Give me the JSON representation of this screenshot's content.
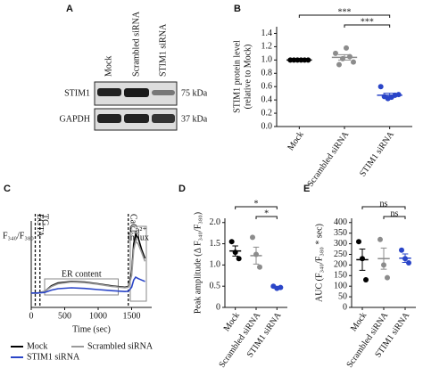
{
  "blot": {
    "panel": "A",
    "lanes": [
      "Mock",
      "Scrambled siRNA",
      "STIM1 siRNA"
    ],
    "rows": [
      {
        "name": "STIM1",
        "marker": "75 kDa"
      },
      {
        "name": "GAPDH",
        "marker": "37 kDa"
      }
    ]
  },
  "chart_data": [
    {
      "type": "dot",
      "panel": "B",
      "ylabel": [
        "STIM1 protein level",
        "(relative to Mock)"
      ],
      "categories": [
        "Mock",
        "Scrambled siRNA",
        "STIM1 siRNA"
      ],
      "colors": [
        "#000000",
        "#8c8c8c",
        "#2a45c8"
      ],
      "points": [
        [
          1.0,
          1.0,
          1.0,
          1.0,
          1.0,
          1.0
        ],
        [
          1.1,
          0.93,
          1.02,
          1.18,
          1.05,
          0.97
        ],
        [
          0.6,
          0.45,
          0.42,
          0.44,
          0.47,
          0.48
        ]
      ],
      "means": [
        1.0,
        1.04,
        0.47
      ],
      "errors": [
        0.01,
        0.04,
        0.03
      ],
      "ylim": [
        0,
        1.5
      ],
      "yticks": [
        {
          "value": 0,
          "label": "0.0"
        },
        0.2,
        0.4,
        0.6,
        0.8,
        {
          "value": 1,
          "label": "1.0"
        },
        1.2,
        1.4
      ],
      "significance": [
        {
          "label": "***",
          "groups": [
            0,
            2
          ]
        },
        {
          "label": "***",
          "groups": [
            1,
            2
          ]
        }
      ]
    },
    {
      "type": "line",
      "panel": "C",
      "ylabel": "F₃₄₀/F₃₈₀",
      "xlabel": "Time (sec)",
      "x": [
        0,
        100,
        200,
        300,
        400,
        600,
        800,
        1000,
        1200,
        1400,
        1450,
        1500,
        1530,
        1560,
        1600,
        1650,
        1700
      ],
      "series": [
        {
          "name": "Mock",
          "color": "#000000",
          "values": [
            0.5,
            0.5,
            0.55,
            0.75,
            0.85,
            0.9,
            0.88,
            0.82,
            0.75,
            0.7,
            0.72,
            1.2,
            2.2,
            2.55,
            2.4,
            2.0,
            1.7
          ]
        },
        {
          "name": "Scrambled siRNA",
          "color": "#9a9a9a",
          "values": [
            0.5,
            0.5,
            0.55,
            0.72,
            0.82,
            0.88,
            0.86,
            0.8,
            0.73,
            0.68,
            0.7,
            1.1,
            2.0,
            2.3,
            2.2,
            1.9,
            1.6
          ]
        },
        {
          "name": "STIM1 siRNA",
          "color": "#2a45c8",
          "values": [
            0.5,
            0.5,
            0.52,
            0.6,
            0.65,
            0.68,
            0.66,
            0.62,
            0.58,
            0.55,
            0.56,
            0.7,
            0.95,
            1.05,
            1.0,
            0.95,
            0.9
          ]
        }
      ],
      "xlim": [
        0,
        1800
      ],
      "xticks": [
        0,
        500,
        1000,
        1500
      ],
      "ylim": [
        0,
        3
      ],
      "events": [
        {
          "label": "EGTA",
          "x": 60
        },
        {
          "label": "TG",
          "x": 130
        },
        {
          "label": "CaCl₂",
          "x": 1450
        }
      ],
      "ranges": [
        {
          "label": [
            "ER content"
          ],
          "x": [
            200,
            1300
          ]
        },
        {
          "label": [
            "Ca²⁺",
            "influx"
          ],
          "x": [
            1480,
            1720
          ]
        }
      ]
    },
    {
      "type": "dot",
      "panel": "D",
      "ylabel": [
        "Peak amplitude (Δ F₃₄₀/F₃₈₀)"
      ],
      "categories": [
        "Mock",
        "Scrambled siRNA",
        "STIM1 siRNA"
      ],
      "colors": [
        "#000000",
        "#8c8c8c",
        "#2a45c8"
      ],
      "points": [
        [
          1.55,
          1.3,
          1.15
        ],
        [
          1.65,
          1.25,
          0.95
        ],
        [
          0.5,
          0.45,
          0.47
        ]
      ],
      "means": [
        1.33,
        1.22,
        0.47
      ],
      "errors": [
        0.12,
        0.2,
        0.02
      ],
      "ylim": [
        0,
        2.1
      ],
      "yticks": [
        0,
        0.5,
        {
          "value": 1,
          "label": "1.0"
        },
        1.5,
        {
          "value": 2,
          "label": "2.0"
        }
      ],
      "significance": [
        {
          "label": "*",
          "groups": [
            0,
            2
          ]
        },
        {
          "label": "*",
          "groups": [
            1,
            2
          ]
        }
      ]
    },
    {
      "type": "dot",
      "panel": "E",
      "ylabel": [
        "AUC (F₃₄₀/F₃₈₀ * sec)"
      ],
      "categories": [
        "Mock",
        "Scrambled siRNA",
        "STIM1 siRNA"
      ],
      "colors": [
        "#000000",
        "#8c8c8c",
        "#2a45c8"
      ],
      "points": [
        [
          310,
          230,
          130
        ],
        [
          320,
          200,
          140
        ],
        [
          270,
          230,
          210
        ]
      ],
      "means": [
        225,
        230,
        232
      ],
      "errors": [
        50,
        50,
        20
      ],
      "ylim": [
        0,
        420
      ],
      "yticks": [
        0,
        50,
        100,
        150,
        200,
        250,
        300,
        350,
        400
      ],
      "significance": [
        {
          "label": "ns",
          "groups": [
            0,
            2
          ]
        },
        {
          "label": "ns",
          "groups": [
            1,
            2
          ]
        }
      ]
    }
  ]
}
